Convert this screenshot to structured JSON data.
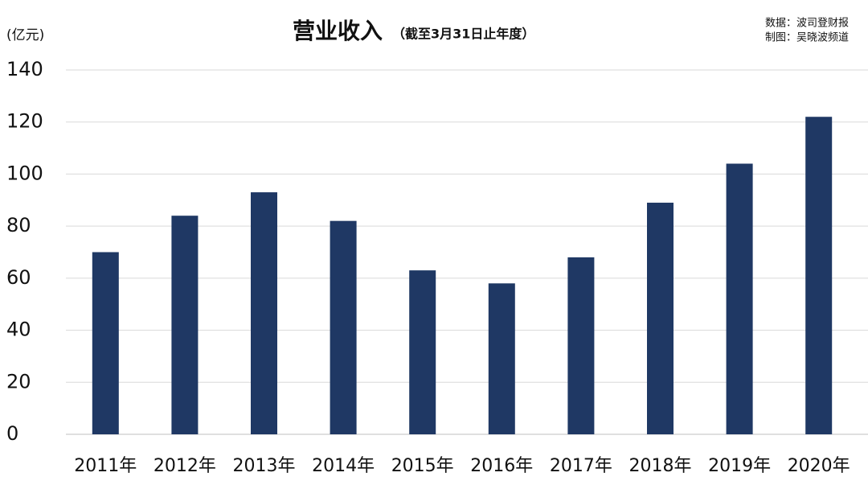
{
  "chart_data": {
    "type": "bar",
    "title": "营业收入",
    "subtitle": "（截至3月31日止年度）",
    "y_label": "(亿元)",
    "source": "数据：波司登财报",
    "credit": "制图：吴晓波频道",
    "categories": [
      "2011年",
      "2012年",
      "2013年",
      "2014年",
      "2015年",
      "2016年",
      "2017年",
      "2018年",
      "2019年",
      "2020年"
    ],
    "values": [
      70,
      84,
      93,
      82,
      63,
      58,
      68,
      89,
      104,
      122
    ],
    "color": "#1f3864",
    "ylim": [
      0,
      140
    ],
    "yticks": [
      0,
      20,
      40,
      60,
      80,
      100,
      120,
      140
    ],
    "grid": true
  }
}
